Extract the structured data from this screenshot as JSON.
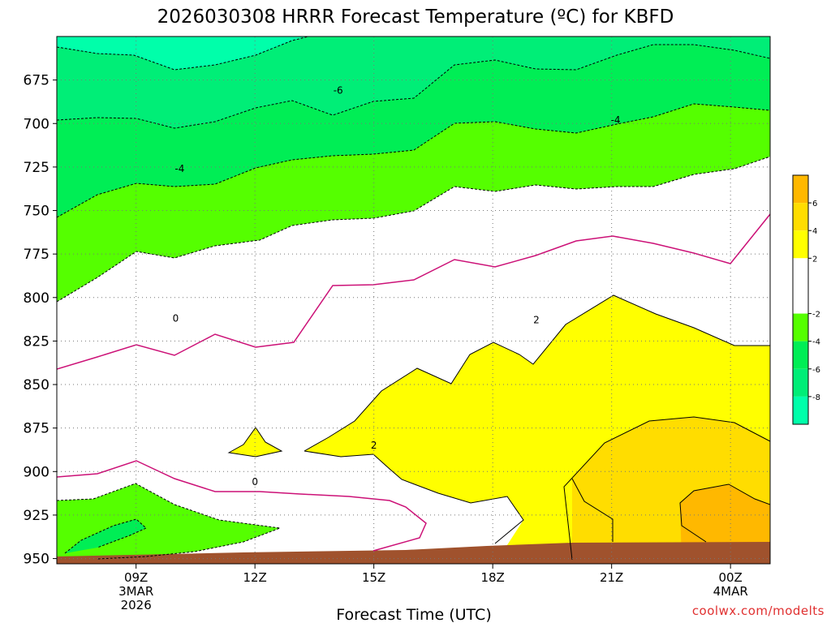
{
  "chart_data": {
    "type": "contour",
    "title": "2026030308 HRRR Forecast Temperature (ºC) for KBFD",
    "xlabel": "Forecast Time (UTC)",
    "credit": "coolwx.com/modelts",
    "y_ticks": [
      "675",
      "700",
      "725",
      "750",
      "775",
      "800",
      "825",
      "850",
      "875",
      "900",
      "925",
      "950"
    ],
    "y_values": [
      675,
      700,
      725,
      750,
      775,
      800,
      825,
      850,
      875,
      900,
      925,
      950
    ],
    "y_range": [
      650,
      953
    ],
    "y_units": "hPa",
    "x_range_hours": [
      7,
      25
    ],
    "x_ticks": [
      {
        "hour": 9,
        "label": "09Z",
        "sub1": "3MAR",
        "sub2": "2026"
      },
      {
        "hour": 12,
        "label": "12Z",
        "sub1": "",
        "sub2": ""
      },
      {
        "hour": 15,
        "label": "15Z",
        "sub1": "",
        "sub2": ""
      },
      {
        "hour": 18,
        "label": "18Z",
        "sub1": "",
        "sub2": ""
      },
      {
        "hour": 21,
        "label": "21Z",
        "sub1": "",
        "sub2": ""
      },
      {
        "hour": 24,
        "label": "00Z",
        "sub1": "4MAR",
        "sub2": ""
      }
    ],
    "grid": true,
    "colorbar": {
      "placement": "right",
      "ticks": [
        "6",
        "4",
        "2",
        "-2",
        "-4",
        "-6",
        "-8"
      ],
      "bins": [
        {
          "from": 6,
          "to": 8,
          "color": "#ffb800"
        },
        {
          "from": 4,
          "to": 6,
          "color": "#ffdd00"
        },
        {
          "from": 2,
          "to": 4,
          "color": "#ffff00"
        },
        {
          "from": -2,
          "to": 2,
          "color": "#ffffff"
        },
        {
          "from": -4,
          "to": -2,
          "color": "#55ff00"
        },
        {
          "from": -6,
          "to": -4,
          "color": "#00ee55"
        },
        {
          "from": -8,
          "to": -6,
          "color": "#00ee77"
        },
        {
          "from": -10,
          "to": -8,
          "color": "#00ffaa"
        }
      ]
    },
    "contour_labels": [
      {
        "text": "-6",
        "hour": 14.1,
        "p": 681
      },
      {
        "text": "-4",
        "hour": 21.1,
        "p": 698
      },
      {
        "text": "-4",
        "hour": 10.1,
        "p": 726
      },
      {
        "text": "0",
        "hour": 10.0,
        "p": 812
      },
      {
        "text": "2",
        "hour": 19.1,
        "p": 813
      },
      {
        "text": "2",
        "hour": 15.0,
        "p": 885
      },
      {
        "text": "0",
        "hour": 12.0,
        "p": 906
      }
    ],
    "colors": {
      "zero_line": "#cc1177",
      "terrain": "#a0522d"
    }
  }
}
